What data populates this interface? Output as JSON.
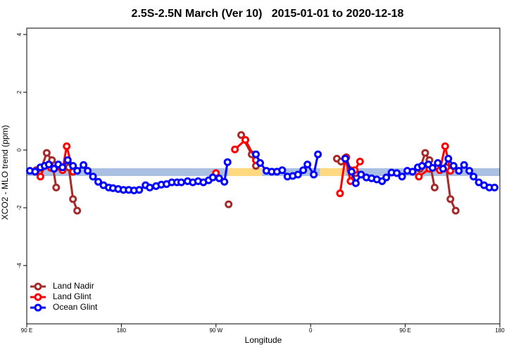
{
  "chart_data": {
    "type": "line",
    "title": "2.5S-2.5N March (Ver 10)   2015-01-01 to 2020-12-18",
    "xlabel": "Longitude",
    "ylabel": "XCO2 - MLO trend (ppm)",
    "xlim": [
      90,
      540
    ],
    "ylim": [
      -6.02,
      4.22
    ],
    "xticks": [
      {
        "value": 90,
        "label": "90 E"
      },
      180,
      {
        "value": 270,
        "label": "90 W"
      },
      {
        "value": 360,
        "label": "0"
      },
      {
        "value": 450,
        "label": "90 E"
      },
      {
        "value": 540,
        "label": "180"
      }
    ],
    "yticks": [
      4,
      2,
      0,
      -2,
      -4
    ],
    "legend": "lower left",
    "bands": [
      {
        "x": [
          90,
          282
        ],
        "y": [
          -0.9,
          -0.63
        ],
        "color": "#aac0e2"
      },
      {
        "x": [
          282,
          314
        ],
        "y": [
          -0.9,
          -0.63
        ],
        "color": "#ffd97f"
      },
      {
        "x": [
          314,
          369
        ],
        "y": [
          -0.9,
          -0.63
        ],
        "color": "#aac0e2"
      },
      {
        "x": [
          369,
          393
        ],
        "y": [
          -0.9,
          -0.63
        ],
        "color": "#ffd97f"
      },
      {
        "x": [
          393,
          540
        ],
        "y": [
          -0.9,
          -0.63
        ],
        "color": "#aac0e2"
      }
    ],
    "series": [
      {
        "name": "Land Nadir",
        "color": "#a52a2a",
        "x": [
          99,
          104,
          109,
          114,
          118,
          null,
          130,
          134,
          138,
          null,
          282,
          null,
          294,
          304,
          308,
          null,
          385,
          389,
          394,
          398,
          403,
          null,
          464,
          469,
          473,
          478,
          null,
          489,
          493,
          498
        ],
        "values": [
          -0.7,
          -0.62,
          -0.1,
          -0.35,
          -1.3,
          null,
          -0.6,
          -1.7,
          -2.1,
          null,
          -1.88,
          null,
          0.52,
          -0.15,
          -0.55,
          null,
          -0.3,
          -0.4,
          -0.25,
          -0.7,
          -0.8,
          null,
          -0.65,
          -0.1,
          -0.35,
          -1.3,
          null,
          -0.6,
          -1.7,
          -2.1
        ]
      },
      {
        "name": "Land Glint",
        "color": "#ff0000",
        "x": [
          103,
          107,
          113,
          124,
          128,
          134,
          null,
          270,
          null,
          288,
          298,
          308,
          null,
          388,
          393,
          398,
          402,
          407,
          null,
          463,
          473,
          483,
          488,
          493
        ],
        "values": [
          -0.92,
          -0.55,
          -0.62,
          -0.7,
          0.13,
          -0.75,
          null,
          -0.8,
          null,
          0.02,
          0.35,
          -0.35,
          null,
          -1.5,
          -0.28,
          -1.08,
          -0.7,
          -0.4,
          null,
          -0.92,
          -0.65,
          -0.7,
          0.13,
          -0.72
        ]
      },
      {
        "name": "Ocean Glint",
        "color": "#0000ff",
        "x": [
          93,
          98,
          103,
          107,
          111,
          116,
          120,
          124,
          129,
          134,
          138,
          144,
          148,
          153,
          158,
          163,
          168,
          172,
          177,
          182,
          187,
          192,
          197,
          203,
          207,
          213,
          218,
          223,
          228,
          233,
          237,
          243,
          248,
          253,
          258,
          263,
          267,
          273,
          278,
          281,
          null,
          308,
          312,
          318,
          323,
          328,
          333,
          338,
          343,
          348,
          353,
          357,
          363,
          367,
          null,
          393,
          399,
          403,
          408,
          413,
          418,
          423,
          428,
          432,
          437,
          442,
          447,
          452,
          457,
          462,
          466,
          472,
          476,
          481,
          486,
          491,
          496,
          501,
          506,
          511,
          515,
          520,
          525,
          530,
          535
        ],
        "values": [
          -0.72,
          -0.75,
          -0.6,
          -0.55,
          -0.5,
          -0.65,
          -0.5,
          -0.6,
          -0.35,
          -0.55,
          -0.72,
          -0.52,
          -0.72,
          -0.92,
          -1.1,
          -1.22,
          -1.3,
          -1.32,
          -1.35,
          -1.38,
          -1.38,
          -1.4,
          -1.38,
          -1.22,
          -1.3,
          -1.25,
          -1.2,
          -1.18,
          -1.12,
          -1.12,
          -1.12,
          -1.08,
          -1.12,
          -1.08,
          -1.12,
          -1.05,
          -0.95,
          -0.98,
          -1.1,
          -0.42,
          null,
          -0.15,
          -0.45,
          -0.72,
          -0.75,
          -0.75,
          -0.7,
          -0.92,
          -0.9,
          -0.85,
          -0.7,
          -0.5,
          -0.85,
          -0.15,
          null,
          -0.3,
          -0.75,
          -1.15,
          -0.85,
          -0.95,
          -0.98,
          -1.02,
          -1.08,
          -0.95,
          -0.78,
          -0.8,
          -0.92,
          -0.72,
          -0.75,
          -0.6,
          -0.55,
          -0.5,
          -0.62,
          -0.45,
          -0.65,
          -0.3,
          -0.55,
          -0.72,
          -0.52,
          -0.72,
          -0.92,
          -1.12,
          -1.22,
          -1.3,
          -1.3
        ]
      }
    ]
  }
}
